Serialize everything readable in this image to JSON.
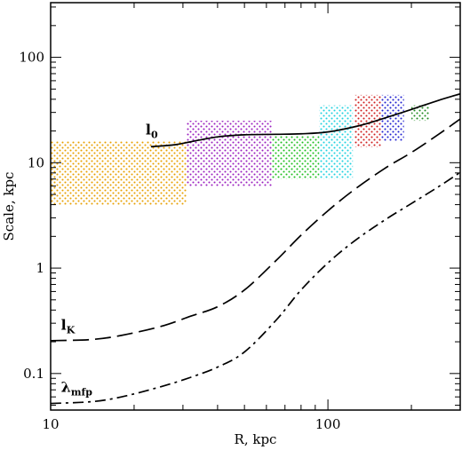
{
  "chart_data": {
    "type": "line",
    "title": "",
    "xlabel": "R, kpc",
    "ylabel": "Scale, kpc",
    "xscale": "log",
    "yscale": "log",
    "xlim": [
      10,
      300
    ],
    "ylim": [
      0.045,
      330
    ],
    "grid": false,
    "x_ticks": [
      10,
      100
    ],
    "x_tick_labels": [
      "10",
      "100"
    ],
    "y_ticks": [
      0.1,
      1,
      10,
      100
    ],
    "y_tick_labels": [
      "0.1",
      "1",
      "10",
      "100"
    ],
    "series": [
      {
        "name": "l0",
        "style": "solid",
        "points": [
          [
            23,
            14.2
          ],
          [
            28,
            14.8
          ],
          [
            32,
            15.8
          ],
          [
            40,
            17.6
          ],
          [
            50,
            18.4
          ],
          [
            65,
            18.6
          ],
          [
            80,
            18.8
          ],
          [
            100,
            19.6
          ],
          [
            130,
            22.5
          ],
          [
            160,
            26.5
          ],
          [
            200,
            32
          ],
          [
            250,
            39
          ],
          [
            300,
            45
          ]
        ]
      },
      {
        "name": "lK",
        "style": "long-dash",
        "points": [
          [
            10,
            0.205
          ],
          [
            14,
            0.21
          ],
          [
            18,
            0.23
          ],
          [
            25,
            0.28
          ],
          [
            32,
            0.35
          ],
          [
            40,
            0.43
          ],
          [
            50,
            0.62
          ],
          [
            65,
            1.18
          ],
          [
            80,
            2.05
          ],
          [
            100,
            3.5
          ],
          [
            125,
            5.6
          ],
          [
            160,
            8.8
          ],
          [
            200,
            12.5
          ],
          [
            250,
            18.5
          ],
          [
            300,
            26
          ]
        ]
      },
      {
        "name": "λmfp",
        "style": "dash-dot",
        "points": [
          [
            10,
            0.052
          ],
          [
            14,
            0.054
          ],
          [
            18,
            0.06
          ],
          [
            25,
            0.075
          ],
          [
            32,
            0.092
          ],
          [
            40,
            0.115
          ],
          [
            50,
            0.16
          ],
          [
            65,
            0.32
          ],
          [
            80,
            0.62
          ],
          [
            100,
            1.12
          ],
          [
            125,
            1.82
          ],
          [
            160,
            2.85
          ],
          [
            200,
            4.1
          ],
          [
            250,
            5.9
          ],
          [
            300,
            8.1
          ]
        ]
      }
    ],
    "regions": [
      {
        "x": [
          10,
          31
        ],
        "y": [
          4,
          16
        ],
        "color": "#e8a000"
      },
      {
        "x": [
          31,
          63
        ],
        "y": [
          6,
          25
        ],
        "color": "#9a1fbf"
      },
      {
        "x": [
          63,
          93
        ],
        "y": [
          7,
          18
        ],
        "color": "#1fbf1f"
      },
      {
        "x": [
          93,
          123
        ],
        "y": [
          7,
          35
        ],
        "color": "#1fd1e0"
      },
      {
        "x": [
          125,
          155
        ],
        "y": [
          14,
          44
        ],
        "color": "#d01f1f"
      },
      {
        "x": [
          155,
          188
        ],
        "y": [
          16,
          44
        ],
        "color": "#1f1fd0"
      },
      {
        "x": [
          200,
          232
        ],
        "y": [
          25,
          35
        ],
        "color": "#1f8a1f"
      }
    ],
    "annotations": [
      {
        "text": "l",
        "sub": "0",
        "x": 22,
        "y": 18.5
      },
      {
        "text": "l",
        "sub": "K",
        "x": 10.9,
        "y": 0.26
      },
      {
        "text": "λ",
        "sub": "mfp",
        "x": 10.9,
        "y": 0.067
      }
    ]
  }
}
